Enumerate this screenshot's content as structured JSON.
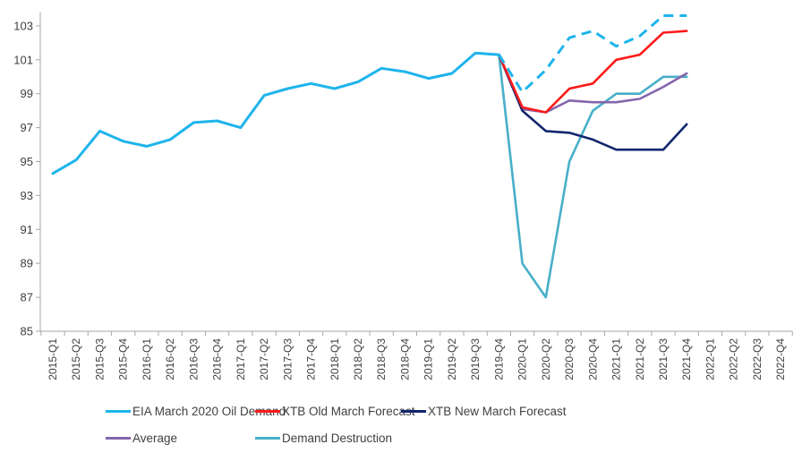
{
  "chart_data": {
    "type": "line",
    "title": "",
    "xlabel": "",
    "ylabel": "",
    "ylim": [
      85,
      103.8
    ],
    "yticks": [
      85,
      87,
      89,
      91,
      93,
      95,
      97,
      99,
      101,
      103
    ],
    "grid": false,
    "legend_position": "bottom",
    "categories": [
      "2015-Q1",
      "2015-Q2",
      "2015-Q3",
      "2015-Q4",
      "2016-Q1",
      "2016-Q2",
      "2016-Q3",
      "2016-Q4",
      "2017-Q1",
      "2017-Q2",
      "2017-Q3",
      "2017-Q4",
      "2018-Q1",
      "2018-Q2",
      "2018-Q3",
      "2018-Q4",
      "2019-Q1",
      "2019-Q2",
      "2019-Q3",
      "2019-Q4",
      "2020-Q1",
      "2020-Q2",
      "2020-Q3",
      "2020-Q4",
      "2021-Q1",
      "2021-Q2",
      "2021-Q3",
      "2021-Q4",
      "2022-Q1",
      "2022-Q2",
      "2022-Q3",
      "2022-Q4"
    ],
    "series": [
      {
        "name": "EIA March 2020 Oil Demand",
        "color": "#1eb4ec",
        "style": "solid-then-dashed",
        "values": [
          94.3,
          95.1,
          96.8,
          96.2,
          95.9,
          96.3,
          97.3,
          97.4,
          97.0,
          98.9,
          99.3,
          99.6,
          99.3,
          99.7,
          100.5,
          100.3,
          99.9,
          100.2,
          101.4,
          101.3,
          99.1,
          100.4,
          102.3,
          102.7,
          101.8,
          102.4,
          103.6,
          103.6,
          null,
          null,
          null,
          null
        ],
        "dashed_from": "2019-Q4"
      },
      {
        "name": "XTB Old March Forecast",
        "color": "#ff1a1a",
        "style": "solid",
        "values": [
          null,
          null,
          null,
          null,
          null,
          null,
          null,
          null,
          null,
          null,
          null,
          null,
          null,
          null,
          null,
          null,
          null,
          null,
          null,
          101.3,
          98.2,
          97.9,
          99.3,
          99.6,
          101.0,
          101.3,
          102.6,
          102.7,
          null,
          null,
          null,
          null
        ]
      },
      {
        "name": "XTB New March Forecast",
        "color": "#12266e",
        "style": "solid",
        "values": [
          null,
          null,
          null,
          null,
          null,
          null,
          null,
          null,
          null,
          null,
          null,
          null,
          null,
          null,
          null,
          null,
          null,
          null,
          null,
          101.3,
          98.0,
          96.8,
          96.7,
          96.3,
          95.7,
          95.7,
          95.7,
          97.2,
          null,
          null,
          null,
          null
        ]
      },
      {
        "name": "Average",
        "color": "#8466ac",
        "style": "solid",
        "values": [
          null,
          null,
          null,
          null,
          null,
          null,
          null,
          null,
          null,
          null,
          null,
          null,
          null,
          null,
          null,
          null,
          null,
          null,
          null,
          101.3,
          98.1,
          97.9,
          98.6,
          98.5,
          98.5,
          98.7,
          99.4,
          100.2,
          null,
          null,
          null,
          null
        ]
      },
      {
        "name": "Demand Destruction",
        "color": "#48afc9",
        "style": "solid",
        "values": [
          null,
          null,
          null,
          null,
          null,
          null,
          null,
          null,
          null,
          null,
          null,
          null,
          null,
          null,
          null,
          null,
          null,
          null,
          null,
          101.3,
          89.0,
          87.0,
          95.0,
          98.0,
          99.0,
          99.0,
          100.0,
          100.0,
          null,
          null,
          null,
          null
        ]
      }
    ]
  }
}
